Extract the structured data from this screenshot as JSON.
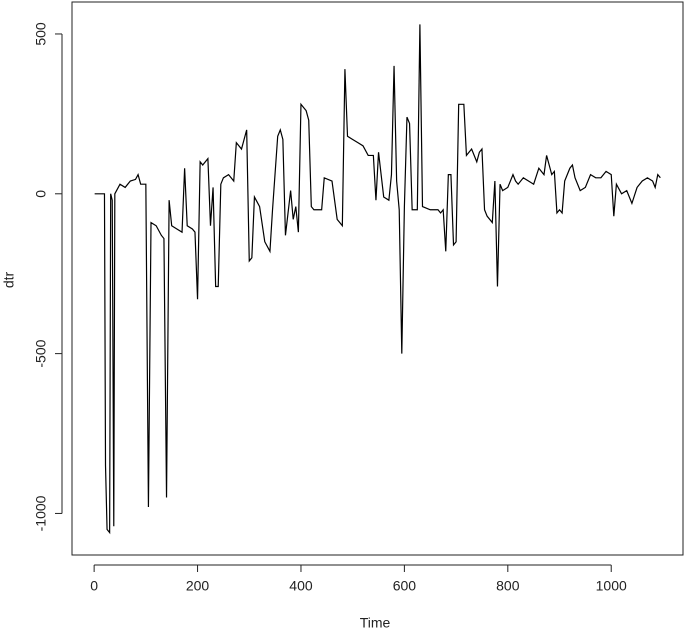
{
  "chart_data": {
    "type": "line",
    "xlabel": "Time",
    "ylabel": "dtr",
    "color": "#000000",
    "x": [
      1,
      20,
      22,
      25,
      30,
      32,
      35,
      38,
      40,
      50,
      60,
      70,
      80,
      85,
      90,
      100,
      105,
      110,
      120,
      130,
      135,
      140,
      145,
      150,
      160,
      170,
      175,
      180,
      190,
      195,
      200,
      205,
      210,
      220,
      225,
      230,
      235,
      240,
      245,
      250,
      260,
      270,
      275,
      285,
      295,
      300,
      305,
      310,
      320,
      330,
      340,
      345,
      355,
      360,
      365,
      370,
      375,
      380,
      385,
      390,
      395,
      400,
      405,
      410,
      415,
      420,
      425,
      440,
      445,
      460,
      470,
      480,
      485,
      490,
      500,
      510,
      520,
      530,
      540,
      545,
      550,
      560,
      570,
      575,
      580,
      585,
      590,
      595,
      600,
      605,
      610,
      615,
      625,
      630,
      635,
      650,
      665,
      670,
      675,
      680,
      685,
      690,
      695,
      700,
      705,
      715,
      720,
      730,
      740,
      745,
      750,
      755,
      760,
      770,
      775,
      780,
      785,
      790,
      800,
      810,
      815,
      820,
      830,
      840,
      850,
      860,
      870,
      875,
      880,
      885,
      890,
      895,
      900,
      905,
      910,
      920,
      925,
      930,
      940,
      950,
      960,
      970,
      980,
      990,
      1000,
      1005,
      1010,
      1020,
      1030,
      1040,
      1050,
      1060,
      1070,
      1080,
      1085,
      1090,
      1095
    ],
    "values": [
      0,
      0,
      -850,
      -1050,
      -1060,
      0,
      -20,
      -1040,
      0,
      30,
      20,
      40,
      45,
      60,
      30,
      30,
      -980,
      -90,
      -100,
      -130,
      -140,
      -950,
      -20,
      -100,
      -110,
      -120,
      80,
      -100,
      -110,
      -120,
      -330,
      100,
      90,
      110,
      -100,
      20,
      -290,
      -290,
      30,
      50,
      60,
      40,
      160,
      140,
      200,
      -210,
      -200,
      -10,
      -40,
      -150,
      -180,
      -50,
      180,
      200,
      170,
      -130,
      -60,
      10,
      -80,
      -40,
      -120,
      280,
      270,
      260,
      230,
      -40,
      -50,
      -50,
      50,
      40,
      -80,
      -100,
      390,
      180,
      170,
      160,
      150,
      120,
      120,
      -20,
      130,
      -10,
      -20,
      60,
      400,
      40,
      -50,
      -500,
      -40,
      240,
      220,
      -50,
      -50,
      530,
      -40,
      -50,
      -50,
      -60,
      -50,
      -180,
      60,
      60,
      -160,
      -150,
      280,
      280,
      120,
      140,
      100,
      130,
      140,
      -50,
      -70,
      -90,
      40,
      -290,
      30,
      10,
      20,
      60,
      40,
      30,
      50,
      40,
      30,
      80,
      60,
      120,
      90,
      60,
      70,
      -60,
      -50,
      -60,
      40,
      80,
      90,
      50,
      10,
      20,
      60,
      50,
      50,
      70,
      60,
      -70,
      30,
      0,
      10,
      -30,
      20,
      40,
      50,
      40,
      20,
      60,
      50
    ],
    "xlim": [
      -42.8,
      1138.8
    ],
    "ylim": [
      -1130,
      600
    ],
    "xticks": [
      0,
      200,
      400,
      600,
      800,
      1000
    ],
    "yticks": [
      -1000,
      -500,
      0,
      500
    ]
  }
}
